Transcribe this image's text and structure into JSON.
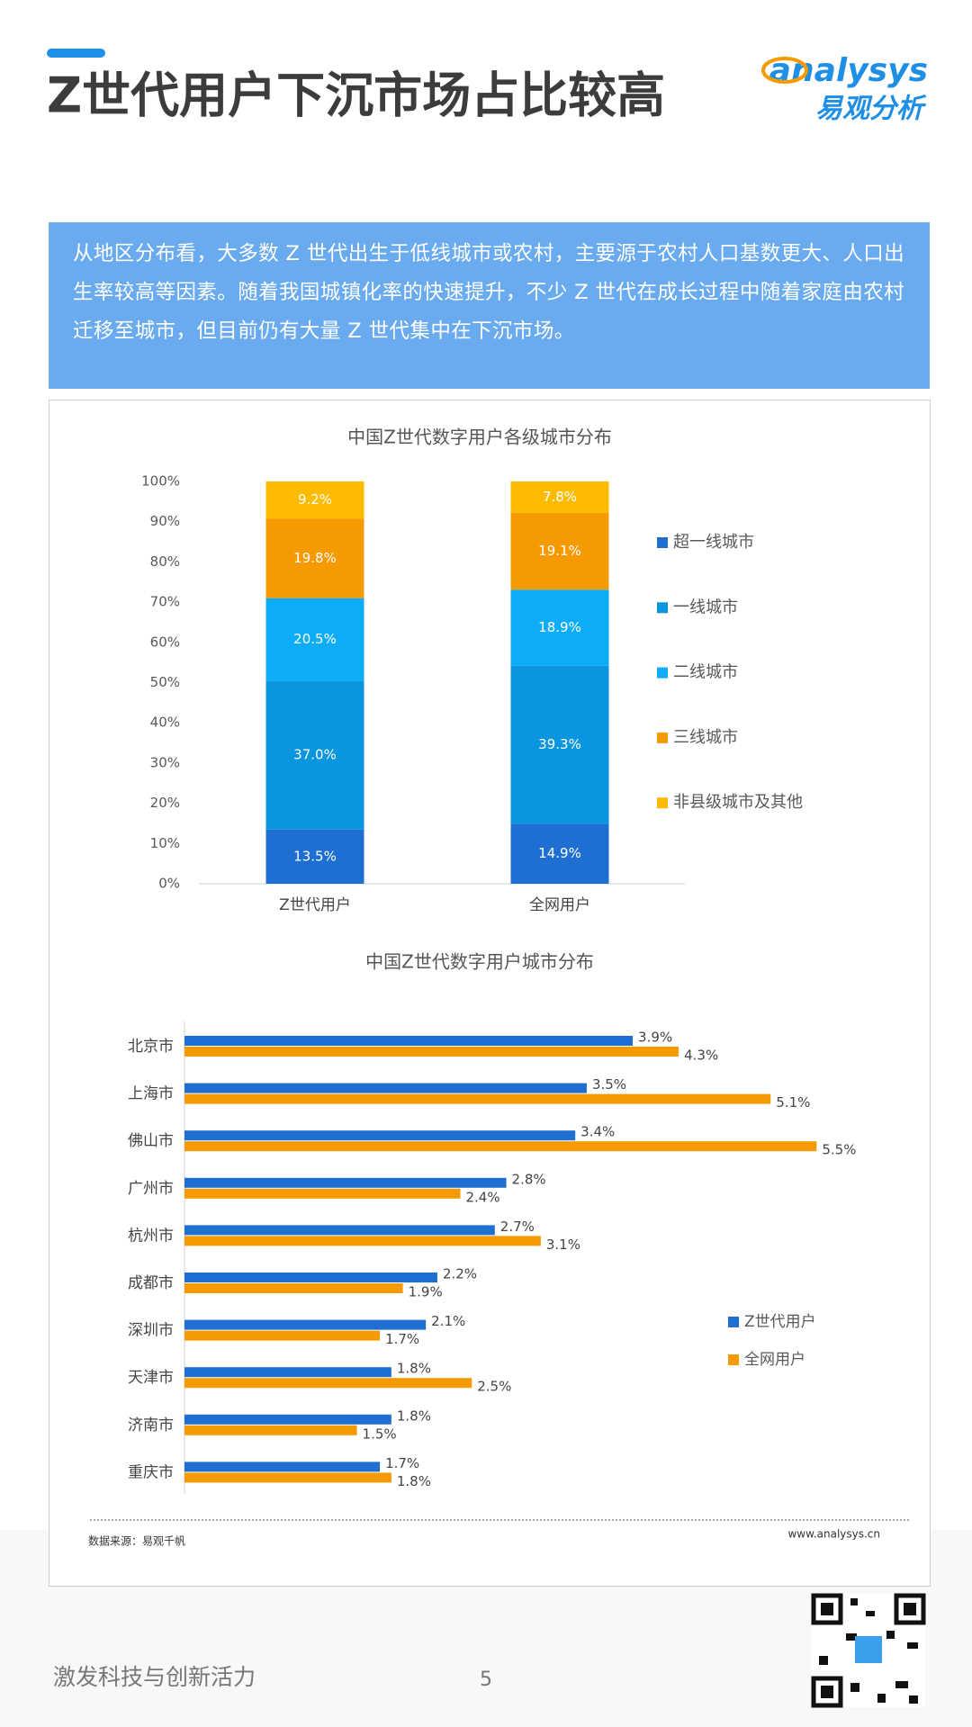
{
  "header": {
    "title": "Z世代用户下沉市场占比较高"
  },
  "logo": {
    "brand": "analysys",
    "name": "易观分析"
  },
  "intro": "从地区分布看，大多数 Z 世代出生于低线城市或农村，主要源于农村人口基数更大、人口出生率较高等因素。随着我国城镇化率的快速提升，不少 Z 世代在成长过程中随着家庭由农村迁移至城市，但目前仍有大量 Z 世代集中在下沉市场。",
  "chart_data": [
    {
      "type": "bar",
      "stacked": true,
      "title": "中国Z世代数字用户各级城市分布",
      "categories": [
        "Z世代用户",
        "全网用户"
      ],
      "series": [
        {
          "name": "超一线城市",
          "color": "#1e6fd1",
          "values": [
            13.5,
            14.9
          ],
          "value_labels": [
            "13.5%",
            "14.9%"
          ]
        },
        {
          "name": "一线城市",
          "color": "#0a95df",
          "values": [
            37.0,
            39.3
          ],
          "value_labels": [
            "37.0%",
            "39.3%"
          ]
        },
        {
          "name": "二线城市",
          "color": "#0cacf7",
          "values": [
            20.5,
            18.9
          ],
          "value_labels": [
            "20.5%",
            "18.9%"
          ]
        },
        {
          "name": "三线城市",
          "color": "#f59a00",
          "values": [
            19.8,
            19.1
          ],
          "value_labels": [
            "19.8%",
            "19.1%"
          ]
        },
        {
          "name": "非县级城市及其他",
          "color": "#fdbb00",
          "values": [
            9.2,
            7.8
          ],
          "value_labels": [
            "9.2%",
            "7.8%"
          ]
        }
      ],
      "ylim": [
        0,
        100
      ],
      "yticks": [
        {
          "value": 0,
          "label": "0%"
        },
        {
          "value": 10,
          "label": "10%"
        },
        {
          "value": 20,
          "label": "20%"
        },
        {
          "value": 30,
          "label": "30%"
        },
        {
          "value": 40,
          "label": "40%"
        },
        {
          "value": 50,
          "label": "50%"
        },
        {
          "value": 60,
          "label": "60%"
        },
        {
          "value": 70,
          "label": "70%"
        },
        {
          "value": 80,
          "label": "80%"
        },
        {
          "value": 90,
          "label": "90%"
        },
        {
          "value": 100,
          "label": "100%"
        }
      ],
      "legend": "right"
    },
    {
      "type": "bar",
      "orientation": "horizontal",
      "title": "中国Z世代数字用户城市分布",
      "categories": [
        "北京市",
        "上海市",
        "佛山市",
        "广州市",
        "杭州市",
        "成都市",
        "深圳市",
        "天津市",
        "济南市",
        "重庆市"
      ],
      "series": [
        {
          "name": "Z世代用户",
          "color": "#1e6fd1",
          "values": [
            3.9,
            3.5,
            3.4,
            2.8,
            2.7,
            2.2,
            2.1,
            1.8,
            1.8,
            1.7
          ],
          "value_labels": [
            "3.9%",
            "3.5%",
            "3.4%",
            "2.8%",
            "2.7%",
            "2.2%",
            "2.1%",
            "1.8%",
            "1.8%",
            "1.7%"
          ]
        },
        {
          "name": "全网用户",
          "color": "#f59a00",
          "values": [
            4.3,
            5.1,
            5.5,
            2.4,
            3.1,
            1.9,
            1.7,
            2.5,
            1.5,
            1.8
          ],
          "value_labels": [
            "4.3%",
            "5.1%",
            "5.5%",
            "2.4%",
            "3.1%",
            "1.9%",
            "1.7%",
            "2.5%",
            "1.5%",
            "1.8%"
          ]
        }
      ],
      "legend": "right"
    }
  ],
  "source": "数据来源：易观千帆",
  "website": "www.analysys.cn",
  "footer": {
    "slogan": "激发科技与创新活力",
    "page": 5
  }
}
